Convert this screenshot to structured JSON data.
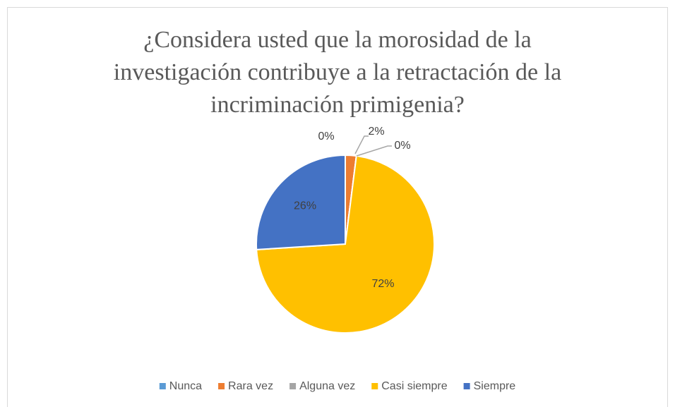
{
  "chart_data": {
    "type": "pie",
    "title": "¿Considera usted que la morosidad de la investigación contribuye a la retractación de la incriminación primigenia?",
    "categories": [
      "Nunca",
      "Rara vez",
      "Alguna vez",
      "Casi siempre",
      "Siempre"
    ],
    "values": [
      0,
      2,
      0,
      72,
      26
    ],
    "value_labels": [
      "0%",
      "2%",
      "0%",
      "72%",
      "26%"
    ],
    "colors": [
      "#5b9bd5",
      "#ed7d31",
      "#a5a5a5",
      "#ffc000",
      "#4472c4"
    ],
    "legend": "bottom"
  }
}
